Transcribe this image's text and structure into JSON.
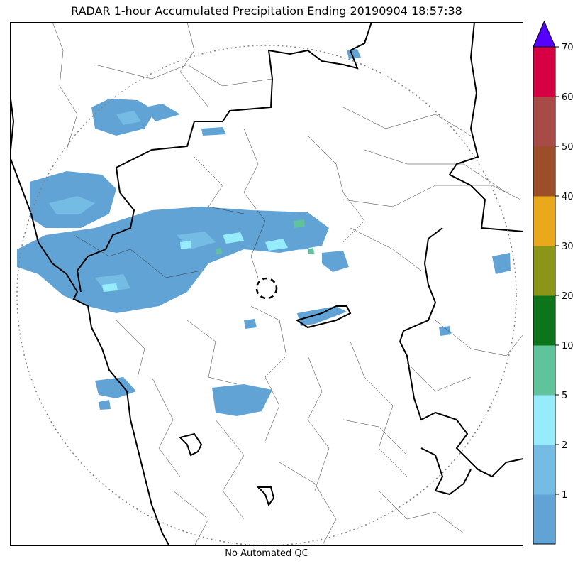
{
  "title": "RADAR 1-hour Accumulated Precipitation Ending 20190904 18:57:38",
  "caption": "No Automated QC",
  "legend": {
    "levels": [
      {
        "label": "",
        "color": "#62a3d6"
      },
      {
        "label": "1",
        "color": "#74bce3"
      },
      {
        "label": "2",
        "color": "#97ecfb"
      },
      {
        "label": "5",
        "color": "#5fc39b"
      },
      {
        "label": "10",
        "color": "#0c7419"
      },
      {
        "label": "20",
        "color": "#8b9618"
      },
      {
        "label": "30",
        "color": "#e9a91b"
      },
      {
        "label": "40",
        "color": "#9c4e29"
      },
      {
        "label": "50",
        "color": "#a84a45"
      },
      {
        "label": "60",
        "color": "#d60044"
      }
    ],
    "top_label": "70",
    "overflow_color": "#5600ff"
  },
  "colors": {
    "light_rain": "#62a3d6",
    "moderate_rain": "#74bce3",
    "heavy_rain": "#97ecfb",
    "very_heavy": "#5fc39b",
    "border": "#000000",
    "range_ring": "#808080"
  }
}
